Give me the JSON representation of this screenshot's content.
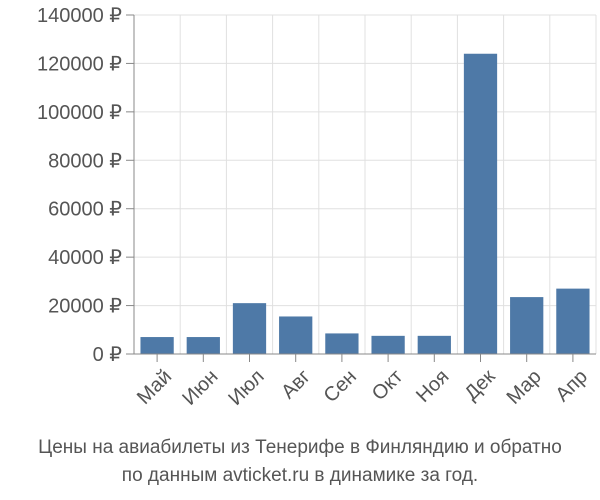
{
  "chart_data": {
    "type": "bar",
    "categories": [
      "Май",
      "Июн",
      "Июл",
      "Авг",
      "Сен",
      "Окт",
      "Ноя",
      "Дек",
      "Мар",
      "Апр"
    ],
    "values": [
      7000,
      7000,
      21000,
      15500,
      8500,
      7500,
      7500,
      124000,
      23500,
      27000
    ],
    "ylim": [
      0,
      140000
    ],
    "yticks": [
      0,
      20000,
      40000,
      60000,
      80000,
      100000,
      120000,
      140000
    ],
    "ytick_labels": [
      "0 ₽",
      "20000 ₽",
      "40000 ₽",
      "60000 ₽",
      "80000 ₽",
      "100000 ₽",
      "120000 ₽",
      "140000 ₽"
    ],
    "grid": true,
    "bar_color": "#4e79a7",
    "caption_line1": "Цены на авиабилеты из Тенерифе в Финляндию и обратно",
    "caption_line2": "по данным avticket.ru в динамике за год."
  }
}
